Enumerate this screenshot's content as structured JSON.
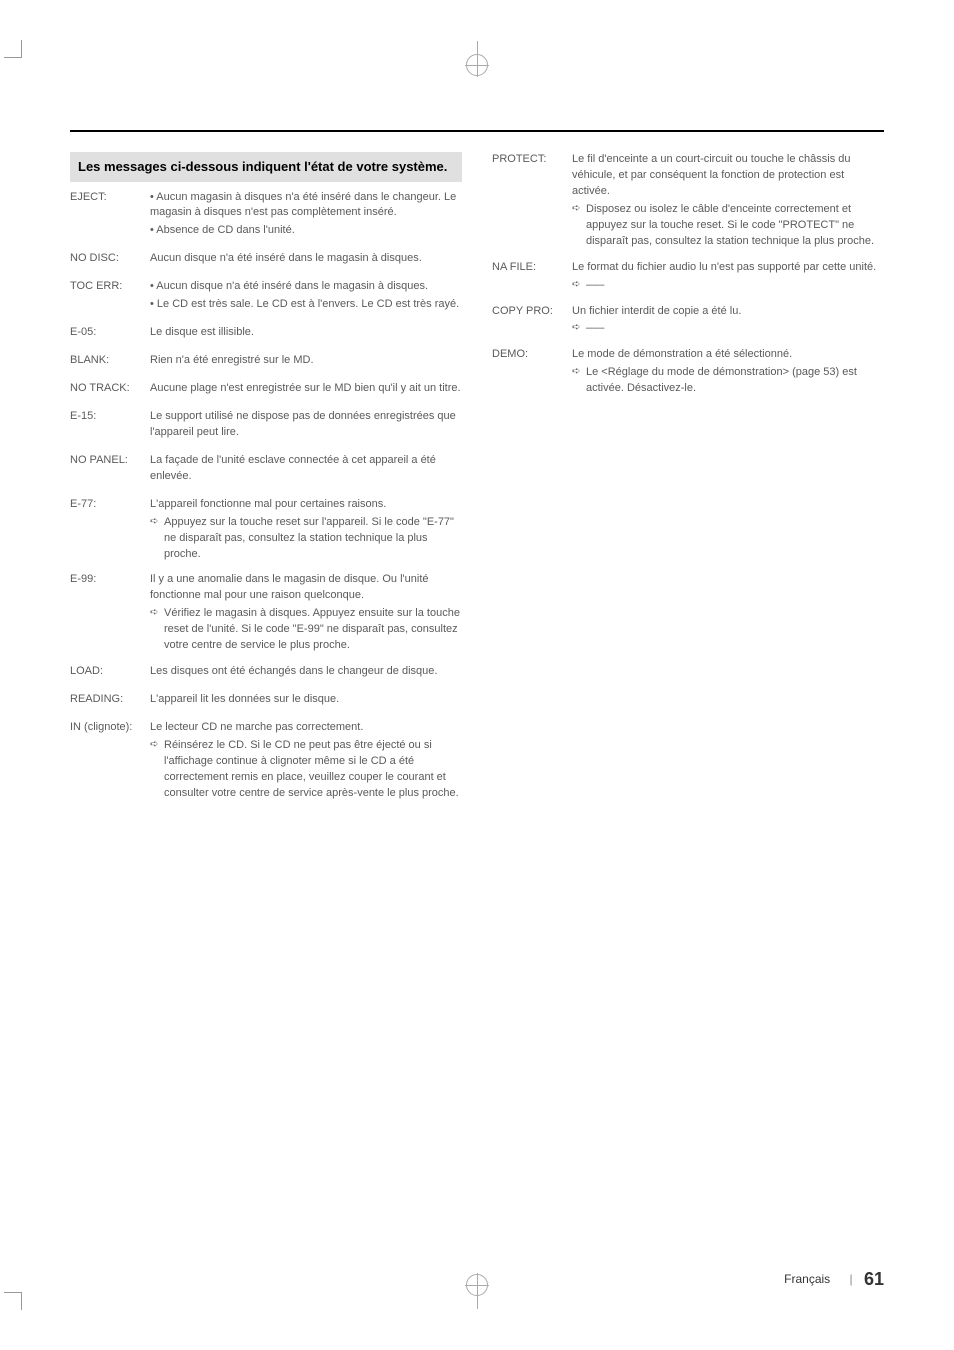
{
  "section_title": "Les messages ci-dessous indiquent l'état de votre système.",
  "footer": {
    "language": "Français",
    "page": "61"
  },
  "left": [
    {
      "label": "EJECT:",
      "bullets": [
        "• Aucun magasin à disques n'a été inséré dans le changeur. Le magasin à disques n'est pas complètement inséré.",
        "• Absence de CD dans l'unité."
      ]
    },
    {
      "label": "NO DISC:",
      "bullets": [
        "Aucun disque n'a été inséré dans le magasin à disques."
      ]
    },
    {
      "label": "TOC ERR:",
      "bullets": [
        "• Aucun disque n'a été inséré dans le magasin à disques.",
        "• Le CD est très sale. Le CD est à l'envers. Le CD est très rayé."
      ]
    },
    {
      "label": "E-05:",
      "bullets": [
        "Le disque est illisible."
      ]
    },
    {
      "label": "BLANK:",
      "bullets": [
        "Rien n'a été enregistré sur le MD."
      ]
    },
    {
      "label": "NO TRACK:",
      "bullets": [
        "Aucune plage n'est enregistrée sur le MD bien qu'il y ait un titre."
      ]
    },
    {
      "label": "E-15:",
      "bullets": [
        "Le support utilisé ne dispose pas de données enregistrées que l'appareil peut lire."
      ]
    },
    {
      "label": "NO PANEL:",
      "bullets": [
        "La façade de l'unité esclave connectée à cet appareil a été enlevée."
      ]
    },
    {
      "label": "E-77:",
      "bullets": [
        "L'appareil fonctionne mal pour certaines raisons."
      ],
      "sub": [
        "Appuyez sur la touche reset sur l'appareil. Si le code \"E-77\" ne disparaît pas, consultez la station technique la plus proche."
      ]
    },
    {
      "label": "E-99:",
      "bullets": [
        "Il y a une anomalie dans le magasin de disque. Ou l'unité fonctionne mal pour une raison quelconque."
      ],
      "sub": [
        "Vérifiez le magasin à disques. Appuyez ensuite sur la touche reset de l'unité. Si le code \"E-99\" ne disparaît pas, consultez votre centre de service le plus proche."
      ]
    },
    {
      "label": "LOAD:",
      "bullets": [
        "Les disques ont été échangés dans le changeur de disque."
      ]
    },
    {
      "label": "READING:",
      "bullets": [
        "L'appareil lit les données sur le disque."
      ]
    },
    {
      "label": "IN (clignote):",
      "bullets": [
        "Le lecteur CD ne marche pas correctement."
      ],
      "sub": [
        "Réinsérez le CD. Si le CD ne peut pas être éjecté ou si l'affichage continue à clignoter même si le CD a été correctement remis en place, veuillez couper le courant et consulter votre centre de service après-vente le plus proche."
      ]
    }
  ],
  "right": [
    {
      "label": "PROTECT:",
      "bullets": [
        "Le fil d'enceinte a un court-circuit ou touche le châssis du véhicule, et par conséquent la fonction de protection est activée."
      ],
      "sub": [
        "Disposez ou isolez le câble d'enceinte correctement et appuyez sur la touche reset. Si le code \"PROTECT\" ne disparaît pas, consultez la station technique la plus proche."
      ]
    },
    {
      "label": "NA FILE:",
      "bullets": [
        "Le format du fichier audio lu n'est pas supporté par cette unité."
      ],
      "dashes": "–––"
    },
    {
      "label": "COPY PRO:",
      "bullets": [
        "Un fichier interdit de copie a été lu."
      ],
      "dashes": "–––"
    },
    {
      "label": "DEMO:",
      "bullets": [
        "Le mode de démonstration a été sélectionné."
      ],
      "sub": [
        "Le <Réglage du mode de démonstration> (page 53) est activée. Désactivez-le."
      ]
    }
  ]
}
